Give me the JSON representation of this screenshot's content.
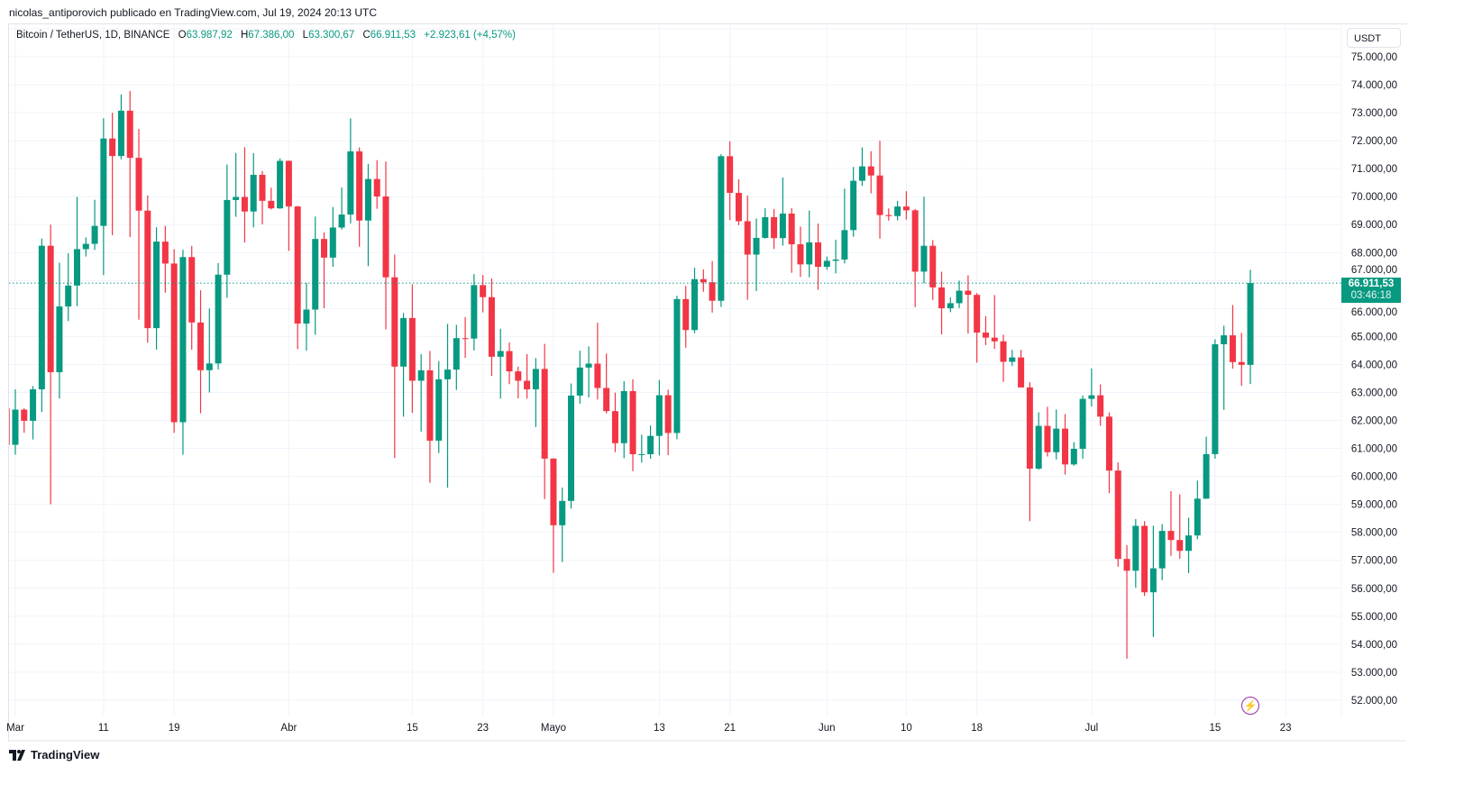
{
  "attribution": "nicolas_antiporovich publicado en TradingView.com, Jul 19, 2024 20:13 UTC",
  "legend": {
    "symbol": "Bitcoin / TetherUS, 1D, BINANCE",
    "open_label": "O",
    "open": "63.987,92",
    "high_label": "H",
    "high": "67.386,00",
    "low_label": "L",
    "low": "63.300,67",
    "close_label": "C",
    "close": "66.911,53",
    "change": "+2.923,61 (+4,57%)"
  },
  "currency": "USDT",
  "last_price": {
    "price": "66.911,53",
    "countdown": "03:46:18"
  },
  "brand": "TradingView",
  "colors": {
    "up": "#089981",
    "down": "#f23645",
    "grid": "#f0f3fa",
    "alert": "#9c27b0"
  },
  "chart_data": {
    "type": "candlestick",
    "title": "Bitcoin / TetherUS, 1D, BINANCE",
    "ylim": [
      51500,
      76500
    ],
    "y_ticks": [
      52000,
      53000,
      54000,
      55000,
      56000,
      57000,
      58000,
      59000,
      60000,
      61000,
      62000,
      63000,
      64000,
      65000,
      66000,
      67000,
      68000,
      69000,
      70000,
      71000,
      72000,
      73000,
      74000,
      75000
    ],
    "y_tick_labels": [
      "52.000,00",
      "53.000,00",
      "54.000,00",
      "55.000,00",
      "56.000,00",
      "57.000,00",
      "58.000,00",
      "59.000,00",
      "60.000,00",
      "61.000,00",
      "62.000,00",
      "63.000,00",
      "64.000,00",
      "65.000,00",
      "66.000,00",
      "67.000,00",
      "68.000,00",
      "69.000,00",
      "70.000,00",
      "71.000,00",
      "72.000,00",
      "73.000,00",
      "74.000,00",
      "75.000,00"
    ],
    "x_ticks": [
      {
        "day": 0,
        "label": "Mar"
      },
      {
        "day": 10,
        "label": "11"
      },
      {
        "day": 18,
        "label": "19"
      },
      {
        "day": 31,
        "label": "Abr"
      },
      {
        "day": 45,
        "label": "15"
      },
      {
        "day": 53,
        "label": "23"
      },
      {
        "day": 61,
        "label": "Mayo"
      },
      {
        "day": 73,
        "label": "13"
      },
      {
        "day": 81,
        "label": "21"
      },
      {
        "day": 92,
        "label": "Jun"
      },
      {
        "day": 101,
        "label": "10"
      },
      {
        "day": 109,
        "label": "18"
      },
      {
        "day": 122,
        "label": "Jul"
      },
      {
        "day": 136,
        "label": "15"
      },
      {
        "day": 144,
        "label": "23"
      }
    ],
    "first_day": -1,
    "ohlc": [
      [
        62432,
        63676,
        60364,
        61130
      ],
      [
        61130,
        63114,
        60777,
        62387
      ],
      [
        62387,
        62433,
        61561,
        61987
      ],
      [
        61987,
        63231,
        61320,
        63113
      ],
      [
        63113,
        68499,
        62300,
        68245
      ],
      [
        68245,
        69000,
        59005,
        63724
      ],
      [
        63724,
        67638,
        62787,
        66074
      ],
      [
        66074,
        67980,
        65551,
        66823
      ],
      [
        66823,
        69990,
        66082,
        68124
      ],
      [
        68124,
        68541,
        67861,
        68313
      ],
      [
        68313,
        69887,
        68094,
        68955
      ],
      [
        68955,
        72800,
        67194,
        72078
      ],
      [
        72078,
        73000,
        68620,
        71452
      ],
      [
        71452,
        73650,
        71333,
        73072
      ],
      [
        73072,
        73777,
        68555,
        71388
      ],
      [
        71388,
        72419,
        65600,
        69499
      ],
      [
        69499,
        70043,
        64780,
        65300
      ],
      [
        65300,
        68904,
        64533,
        68393
      ],
      [
        68393,
        68956,
        66566,
        67609
      ],
      [
        67609,
        68124,
        61555,
        61937
      ],
      [
        61937,
        68100,
        60775,
        67840
      ],
      [
        67840,
        68240,
        64529,
        65501
      ],
      [
        65501,
        66650,
        62260,
        63796
      ],
      [
        63796,
        65999,
        63000,
        64037
      ],
      [
        64037,
        67622,
        63825,
        67211
      ],
      [
        67211,
        71150,
        66385,
        69880
      ],
      [
        69880,
        71561,
        69280,
        69988
      ],
      [
        69988,
        71769,
        68359,
        69469
      ],
      [
        69469,
        71552,
        68903,
        70780
      ],
      [
        70780,
        70916,
        69009,
        69850
      ],
      [
        69850,
        70321,
        69540,
        69582
      ],
      [
        69582,
        71366,
        69562,
        71280
      ],
      [
        71280,
        71288,
        68062,
        69649
      ],
      [
        69649,
        69674,
        64550,
        65463
      ],
      [
        65463,
        66914,
        64493,
        65963
      ],
      [
        65963,
        69291,
        65064,
        68487
      ],
      [
        68487,
        68725,
        66011,
        67820
      ],
      [
        67820,
        69629,
        67491,
        68896
      ],
      [
        68896,
        70326,
        68824,
        69360
      ],
      [
        69360,
        72797,
        69043,
        71620
      ],
      [
        71620,
        71758,
        68210,
        69146
      ],
      [
        69146,
        71172,
        67518,
        70631
      ],
      [
        70631,
        71305,
        69567,
        70006
      ],
      [
        70006,
        71256,
        65254,
        67116
      ],
      [
        67116,
        67931,
        60660,
        63924
      ],
      [
        63924,
        65840,
        62134,
        65661
      ],
      [
        65661,
        66867,
        62274,
        63419
      ],
      [
        63419,
        64365,
        61600,
        63793
      ],
      [
        63793,
        64486,
        59768,
        61277
      ],
      [
        61277,
        64125,
        60833,
        63470
      ],
      [
        63470,
        65450,
        59600,
        63818
      ],
      [
        63818,
        65419,
        63090,
        64941
      ],
      [
        64941,
        65695,
        64237,
        64926
      ],
      [
        64926,
        67233,
        64500,
        66837
      ],
      [
        66837,
        67199,
        65864,
        66407
      ],
      [
        66407,
        67075,
        63589,
        64276
      ],
      [
        64276,
        65275,
        62783,
        64481
      ],
      [
        64481,
        64792,
        63297,
        63755
      ],
      [
        63755,
        63923,
        62793,
        63419
      ],
      [
        63419,
        64370,
        62781,
        63113
      ],
      [
        63113,
        64228,
        61765,
        63841
      ],
      [
        63841,
        64734,
        59191,
        60636
      ],
      [
        60636,
        60650,
        56552,
        58254
      ],
      [
        58254,
        59602,
        56937,
        59123
      ],
      [
        59123,
        63320,
        58848,
        62889
      ],
      [
        62889,
        64494,
        62599,
        63891
      ],
      [
        63891,
        64646,
        62822,
        64031
      ],
      [
        64031,
        65494,
        62746,
        63161
      ],
      [
        63161,
        64390,
        62250,
        62334
      ],
      [
        62334,
        62995,
        60866,
        61187
      ],
      [
        61187,
        63404,
        60648,
        63049
      ],
      [
        63049,
        63469,
        60187,
        60792
      ],
      [
        60792,
        61490,
        60492,
        60793
      ],
      [
        60793,
        61818,
        60633,
        61448
      ],
      [
        61448,
        63450,
        60749,
        62901
      ],
      [
        62901,
        63102,
        60760,
        61552
      ],
      [
        61552,
        66454,
        61330,
        66339
      ],
      [
        66339,
        66810,
        64600,
        65231
      ],
      [
        65231,
        67459,
        65119,
        67051
      ],
      [
        67051,
        67400,
        66600,
        66940
      ],
      [
        66940,
        67700,
        65857,
        66278
      ],
      [
        66278,
        71515,
        66060,
        71446
      ],
      [
        71446,
        71979,
        69162,
        70136
      ],
      [
        70136,
        70623,
        68977,
        69122
      ],
      [
        69122,
        70041,
        66312,
        67929
      ],
      [
        67929,
        69220,
        66622,
        68526
      ],
      [
        68526,
        69585,
        68500,
        69265
      ],
      [
        69265,
        69562,
        68128,
        68518
      ],
      [
        68518,
        70687,
        68251,
        69394
      ],
      [
        69394,
        69590,
        67278,
        68296
      ],
      [
        68296,
        68929,
        67125,
        67578
      ],
      [
        67578,
        69500,
        67118,
        68364
      ],
      [
        68364,
        69036,
        66670,
        67491
      ],
      [
        67491,
        67857,
        67386,
        67706
      ],
      [
        67706,
        68460,
        67257,
        67751
      ],
      [
        67751,
        70288,
        67613,
        68804
      ],
      [
        68804,
        71063,
        68567,
        70567
      ],
      [
        70567,
        71758,
        70383,
        71082
      ],
      [
        71082,
        71625,
        70119,
        70757
      ],
      [
        70757,
        71997,
        68500,
        69342
      ],
      [
        69342,
        69580,
        69141,
        69305
      ],
      [
        69305,
        69850,
        69151,
        69647
      ],
      [
        69647,
        70195,
        69180,
        69512
      ],
      [
        69512,
        69563,
        66051,
        67319
      ],
      [
        67319,
        69999,
        66902,
        68243
      ],
      [
        68243,
        68449,
        66304,
        66756
      ],
      [
        66756,
        67315,
        65078,
        66011
      ],
      [
        66011,
        66402,
        65871,
        66191
      ],
      [
        66191,
        66996,
        66018,
        66639
      ],
      [
        66639,
        67188,
        65104,
        66490
      ],
      [
        66490,
        66556,
        64066,
        65140
      ],
      [
        65140,
        65727,
        64693,
        64960
      ],
      [
        64960,
        66482,
        64559,
        64828
      ],
      [
        64828,
        65066,
        63379,
        64096
      ],
      [
        64096,
        64520,
        63945,
        64252
      ],
      [
        64252,
        64522,
        63180,
        63180
      ],
      [
        63180,
        63369,
        58402,
        60277
      ],
      [
        60277,
        62292,
        60238,
        61806
      ],
      [
        61806,
        62487,
        60712,
        60864
      ],
      [
        60864,
        62389,
        60606,
        61707
      ],
      [
        61707,
        62225,
        60063,
        60427
      ],
      [
        60427,
        61223,
        60383,
        60986
      ],
      [
        60986,
        62892,
        60633,
        62772
      ],
      [
        62772,
        63861,
        62497,
        62899
      ],
      [
        62899,
        63288,
        61807,
        62135
      ],
      [
        62135,
        62285,
        59400,
        60208
      ],
      [
        60208,
        60498,
        56771,
        57050
      ],
      [
        57050,
        57546,
        53485,
        56628
      ],
      [
        56628,
        58475,
        56018,
        58231
      ],
      [
        58231,
        58400,
        55724,
        55857
      ],
      [
        55857,
        58236,
        54260,
        56714
      ],
      [
        56714,
        58296,
        56289,
        58050
      ],
      [
        58050,
        59470,
        57157,
        57725
      ],
      [
        57725,
        59359,
        57052,
        57339
      ],
      [
        57339,
        58526,
        56542,
        57889
      ],
      [
        57889,
        59850,
        57756,
        59204
      ],
      [
        59204,
        61420,
        59194,
        60797
      ],
      [
        60797,
        64900,
        60632,
        64724
      ],
      [
        64724,
        65388,
        62378,
        65043
      ],
      [
        65043,
        66128,
        63854,
        64087
      ],
      [
        64087,
        65133,
        63238,
        63987
      ],
      [
        63987,
        67386,
        63300,
        66911
      ]
    ],
    "last_close": 66911.53
  }
}
